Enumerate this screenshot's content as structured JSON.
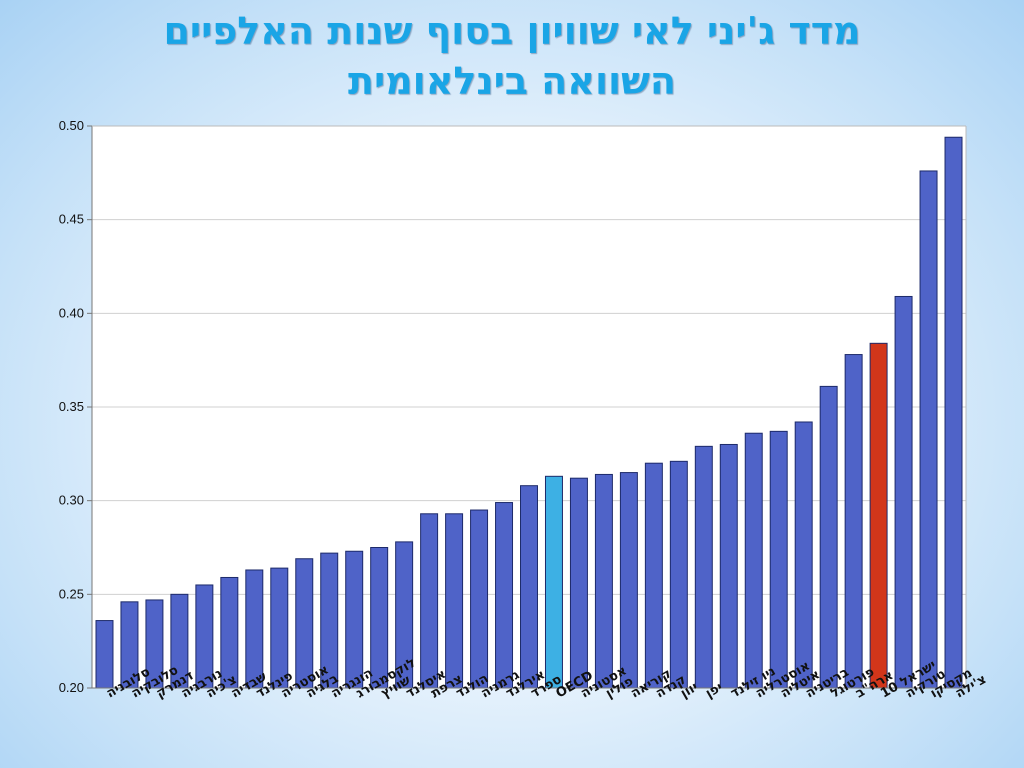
{
  "slide": {
    "title_line1": "מדד ג'יני לאי שוויון בסוף שנות האלפיים",
    "title_line2": "השוואה בינלאומית"
  },
  "colors": {
    "default_bar": "#4f63c8",
    "default_bar_stroke": "#1d2a6a",
    "oecd_bar": "#3db0e4",
    "israel_bar": "#d2361a",
    "grid": "#d0d0d0"
  },
  "chart_data": {
    "type": "bar",
    "title": "",
    "xlabel": "",
    "ylabel": "",
    "ylim": [
      0.2,
      0.5
    ],
    "yticks": [
      "0.20",
      "0.25",
      "0.30",
      "0.35",
      "0.40",
      "0.45",
      "0.50"
    ],
    "grid": true,
    "legend": "none",
    "categories": [
      "סלובניה",
      "סלובקיה",
      "דנמרק",
      "נורבגיה",
      "צ'כיה",
      "שבדיה",
      "פינלנד",
      "אוסטריה",
      "בלגיה",
      "הונגריה",
      "לוקסמבורג",
      "שוויץ",
      "איסלנד",
      "צרפת",
      "הולנד",
      "גרמניה",
      "אירלנד",
      "ספרד",
      "OECD",
      "אסטוניה",
      "פולין",
      "קוריאה",
      "קנדה",
      "יוון",
      "יפן",
      "ניו זילנד",
      "אוסטרליה",
      "איטליה",
      "בריטניה",
      "פורטוגל",
      "ארה\"ב",
      "ישראל 10",
      "טורקיה",
      "מקסיקו",
      "צ'ילה"
    ],
    "values": [
      0.236,
      0.246,
      0.247,
      0.25,
      0.255,
      0.259,
      0.263,
      0.264,
      0.269,
      0.272,
      0.273,
      0.275,
      0.278,
      0.293,
      0.293,
      0.295,
      0.299,
      0.308,
      0.313,
      0.312,
      0.314,
      0.315,
      0.32,
      0.321,
      0.329,
      0.33,
      0.336,
      0.337,
      0.342,
      0.361,
      0.378,
      0.384,
      0.409,
      0.476,
      0.494
    ],
    "highlight": {
      "OECD": "oecd",
      "ישראל 10": "israel"
    }
  }
}
